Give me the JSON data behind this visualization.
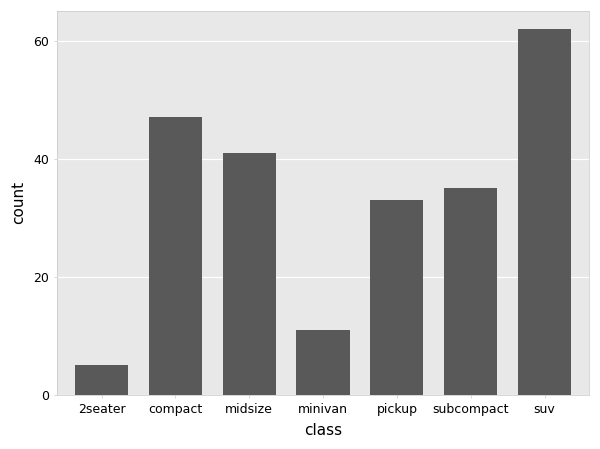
{
  "categories": [
    "2seater",
    "compact",
    "midsize",
    "minivan",
    "pickup",
    "subcompact",
    "suv"
  ],
  "values": [
    5,
    47,
    41,
    11,
    33,
    35,
    62
  ],
  "bar_color": "#595959",
  "bar_edge_color": "#595959",
  "figure_bg_color": "#ffffff",
  "plot_bg_color": "#e8e8e8",
  "grid_color": "#ffffff",
  "xlabel": "class",
  "ylabel": "count",
  "xlabel_fontsize": 11,
  "ylabel_fontsize": 11,
  "tick_fontsize": 9,
  "ylim": [
    0,
    65
  ],
  "yticks": [
    0,
    20,
    40,
    60
  ],
  "bar_width": 0.72,
  "panel_border_color": "#c8c8c8",
  "tick_color": "#555555"
}
